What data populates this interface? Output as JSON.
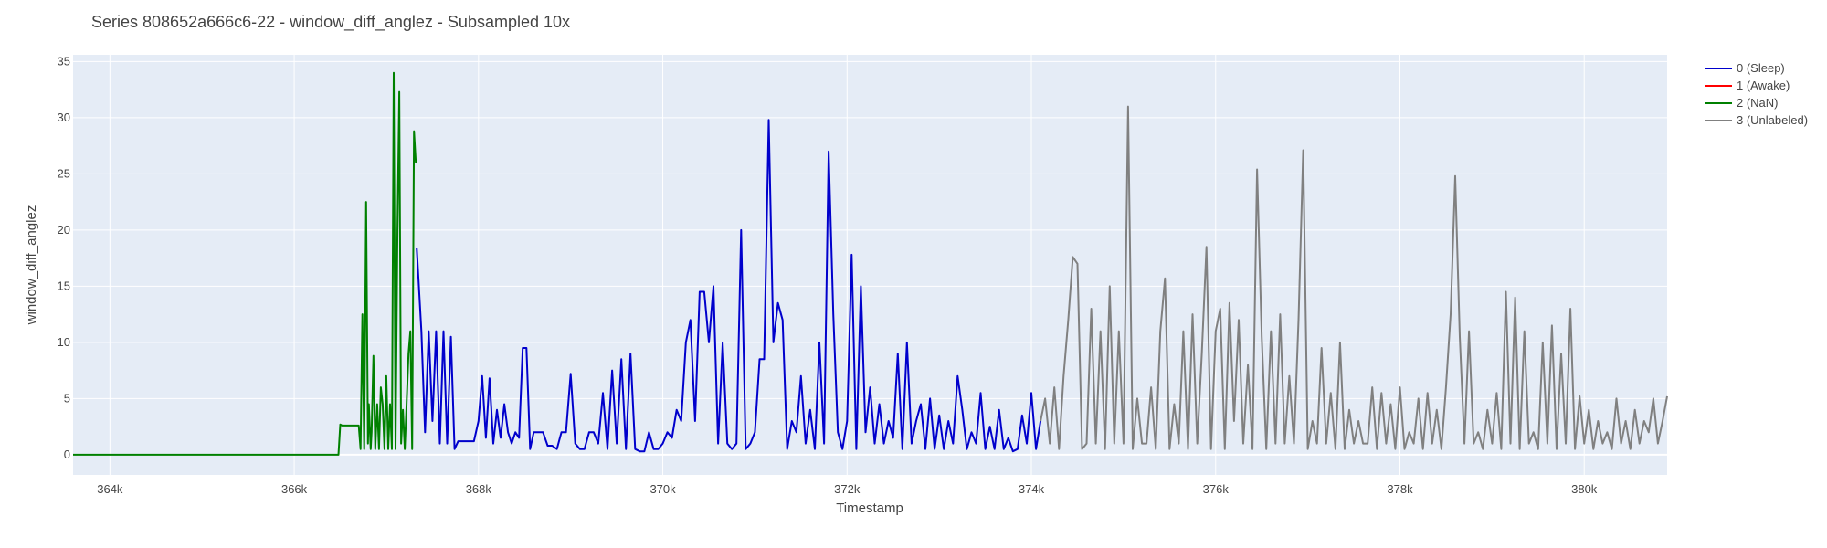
{
  "chart_data": {
    "type": "line",
    "title": "Series 808652a666c6-22 - window_diff_anglez - Subsampled 10x",
    "xlabel": "Timestamp",
    "ylabel": "window_diff_anglez",
    "xlim": [
      363600,
      380900
    ],
    "ylim": [
      -1.8,
      35.6
    ],
    "x_ticks": [
      364000,
      366000,
      368000,
      370000,
      372000,
      374000,
      376000,
      378000,
      380000
    ],
    "x_tick_labels": [
      "364k",
      "366k",
      "368k",
      "370k",
      "372k",
      "374k",
      "376k",
      "378k",
      "380k"
    ],
    "y_ticks": [
      0,
      5,
      10,
      15,
      20,
      25,
      30,
      35
    ],
    "y_tick_labels": [
      "0",
      "5",
      "10",
      "15",
      "20",
      "25",
      "30",
      "35"
    ],
    "grid": true,
    "legend_position": "top-right",
    "series": [
      {
        "name": "0 (Sleep)",
        "color": "#0000cc",
        "x": [
          367330,
          367380,
          367420,
          367460,
          367500,
          367540,
          367580,
          367620,
          367660,
          367700,
          367740,
          367780,
          367820,
          367860,
          367900,
          367950,
          368000,
          368040,
          368080,
          368120,
          368160,
          368200,
          368240,
          368280,
          368320,
          368360,
          368400,
          368440,
          368480,
          368520,
          368560,
          368600,
          368650,
          368700,
          368750,
          368800,
          368850,
          368900,
          368950,
          369000,
          369050,
          369100,
          369150,
          369200,
          369250,
          369300,
          369350,
          369400,
          369450,
          369500,
          369550,
          369600,
          369650,
          369700,
          369750,
          369800,
          369850,
          369900,
          369950,
          370000,
          370050,
          370100,
          370150,
          370200,
          370250,
          370300,
          370350,
          370400,
          370450,
          370500,
          370550,
          370600,
          370650,
          370700,
          370750,
          370800,
          370850,
          370900,
          370950,
          371000,
          371050,
          371100,
          371150,
          371200,
          371250,
          371300,
          371350,
          371400,
          371450,
          371500,
          371550,
          371600,
          371650,
          371700,
          371750,
          371800,
          371850,
          371900,
          371950,
          372000,
          372050,
          372100,
          372150,
          372200,
          372250,
          372300,
          372350,
          372400,
          372450,
          372500,
          372550,
          372600,
          372650,
          372700,
          372750,
          372800,
          372850,
          372900,
          372950,
          373000,
          373050,
          373100,
          373150,
          373200,
          373250,
          373300,
          373350,
          373400,
          373450,
          373500,
          373550,
          373600,
          373650,
          373700,
          373750,
          373800,
          373850,
          373900,
          373950,
          374000,
          374050,
          374100
        ],
        "y": [
          18.4,
          11,
          2,
          11,
          3,
          11,
          1,
          11,
          1,
          10.5,
          0.5,
          1.2,
          1.2,
          1.2,
          1.2,
          1.2,
          3,
          7,
          1.5,
          6.8,
          1,
          4,
          1.5,
          4.5,
          2,
          1,
          2,
          1.5,
          9.5,
          9.5,
          0.5,
          2,
          2,
          2,
          0.8,
          0.8,
          0.5,
          2,
          2,
          7.2,
          1,
          0.5,
          0.5,
          2,
          2,
          1,
          5.5,
          0.5,
          7.5,
          1,
          8.5,
          0.5,
          9,
          0.5,
          0.3,
          0.3,
          2,
          0.5,
          0.5,
          1,
          2,
          1.5,
          4,
          3,
          10,
          12,
          3,
          14.5,
          14.5,
          10,
          15,
          1,
          10,
          1,
          0.5,
          1,
          20,
          0.5,
          1,
          2,
          8.5,
          8.5,
          29.8,
          10,
          13.5,
          12,
          0.5,
          3,
          2,
          7,
          1,
          4,
          0.5,
          10,
          1,
          27,
          12.5,
          2,
          0.5,
          3,
          17.8,
          0.5,
          15,
          2,
          6,
          1,
          4.5,
          1,
          3,
          1.5,
          9,
          0.5,
          10,
          1,
          3,
          4.5,
          0.5,
          5,
          0.5,
          3.5,
          0.5,
          3,
          1,
          7,
          4,
          0.5,
          2,
          1,
          5.5,
          0.5,
          2.5,
          0.5,
          4,
          0.5,
          1.5,
          0.3,
          0.5,
          3.5,
          1,
          5.5,
          0.5,
          3
        ]
      },
      {
        "name": "1 (Awake)",
        "color": "#ff0000",
        "x": [],
        "y": []
      },
      {
        "name": "2 (NaN)",
        "color": "#008000",
        "x": [
          363600,
          366480,
          366500,
          366520,
          366700,
          366720,
          366740,
          366760,
          366780,
          366800,
          366810,
          366830,
          366840,
          366860,
          366880,
          366900,
          366920,
          366940,
          366960,
          366980,
          367000,
          367020,
          367040,
          367060,
          367080,
          367100,
          367120,
          367140,
          367160,
          367180,
          367200,
          367220,
          367240,
          367260,
          367280,
          367300,
          367320
        ],
        "y": [
          0,
          0,
          2.7,
          2.6,
          2.6,
          0.5,
          12.5,
          0.5,
          22.5,
          1,
          4.5,
          0.5,
          2,
          8.8,
          0.5,
          4.5,
          0.5,
          6,
          4.5,
          0.5,
          7,
          0.5,
          4.5,
          0.5,
          34,
          0.5,
          20,
          32.3,
          1,
          4,
          0.5,
          4.5,
          9,
          11,
          0.5,
          28.8,
          26
        ]
      },
      {
        "name": "3 (Unlabeled)",
        "color": "#808080",
        "x": [
          374100,
          374150,
          374200,
          374250,
          374300,
          374350,
          374400,
          374450,
          374500,
          374550,
          374600,
          374650,
          374700,
          374750,
          374800,
          374850,
          374900,
          374950,
          375000,
          375050,
          375100,
          375150,
          375200,
          375250,
          375300,
          375350,
          375400,
          375450,
          375500,
          375550,
          375600,
          375650,
          375700,
          375750,
          375800,
          375850,
          375900,
          375950,
          376000,
          376050,
          376100,
          376150,
          376200,
          376250,
          376300,
          376350,
          376400,
          376450,
          376500,
          376550,
          376600,
          376650,
          376700,
          376750,
          376800,
          376850,
          376900,
          376950,
          377000,
          377050,
          377100,
          377150,
          377200,
          377250,
          377300,
          377350,
          377400,
          377450,
          377500,
          377550,
          377600,
          377650,
          377700,
          377750,
          377800,
          377850,
          377900,
          377950,
          378000,
          378050,
          378100,
          378150,
          378200,
          378250,
          378300,
          378350,
          378400,
          378450,
          378500,
          378550,
          378600,
          378650,
          378700,
          378750,
          378800,
          378850,
          378900,
          378950,
          379000,
          379050,
          379100,
          379150,
          379200,
          379250,
          379300,
          379350,
          379400,
          379450,
          379500,
          379550,
          379600,
          379650,
          379700,
          379750,
          379800,
          379850,
          379900,
          379950,
          380000,
          380050,
          380100,
          380150,
          380200,
          380250,
          380300,
          380350,
          380400,
          380450,
          380500,
          380550,
          380600,
          380650,
          380700,
          380750,
          380800,
          380850,
          380900
        ],
        "y": [
          3,
          5,
          1,
          6,
          0.5,
          7,
          12,
          17.6,
          17,
          0.5,
          1,
          13,
          1,
          11,
          0.5,
          15,
          1,
          11,
          1,
          31,
          0.5,
          5,
          1,
          1,
          6,
          0.5,
          11,
          15.7,
          0.5,
          4.5,
          1,
          11,
          0.5,
          12.5,
          1,
          9,
          18.5,
          0.5,
          11,
          13,
          0.5,
          13.5,
          3,
          12,
          1,
          8,
          0.5,
          25.4,
          10.5,
          0.5,
          11,
          1,
          12.5,
          1,
          7,
          1,
          12,
          27.1,
          0.5,
          3,
          1,
          9.5,
          1,
          5.5,
          0.5,
          10,
          0.5,
          4,
          1,
          3,
          1,
          1,
          6,
          0.5,
          5.5,
          1,
          4.5,
          0.5,
          6,
          0.5,
          2,
          1,
          5,
          0.5,
          5.5,
          1,
          4,
          0.5,
          6,
          12.5,
          24.8,
          10.5,
          1,
          11,
          1,
          2,
          0.5,
          4,
          1,
          5.5,
          0.5,
          14.5,
          1,
          14,
          0.5,
          11,
          1,
          2,
          0.5,
          10,
          1,
          11.5,
          0.5,
          9,
          1,
          13,
          0.5,
          5.2,
          1,
          4,
          0.5,
          3,
          1,
          2,
          0.5,
          5,
          1,
          3,
          0.5,
          4,
          1,
          3,
          2,
          5,
          1,
          3,
          5.2
        ]
      }
    ]
  }
}
